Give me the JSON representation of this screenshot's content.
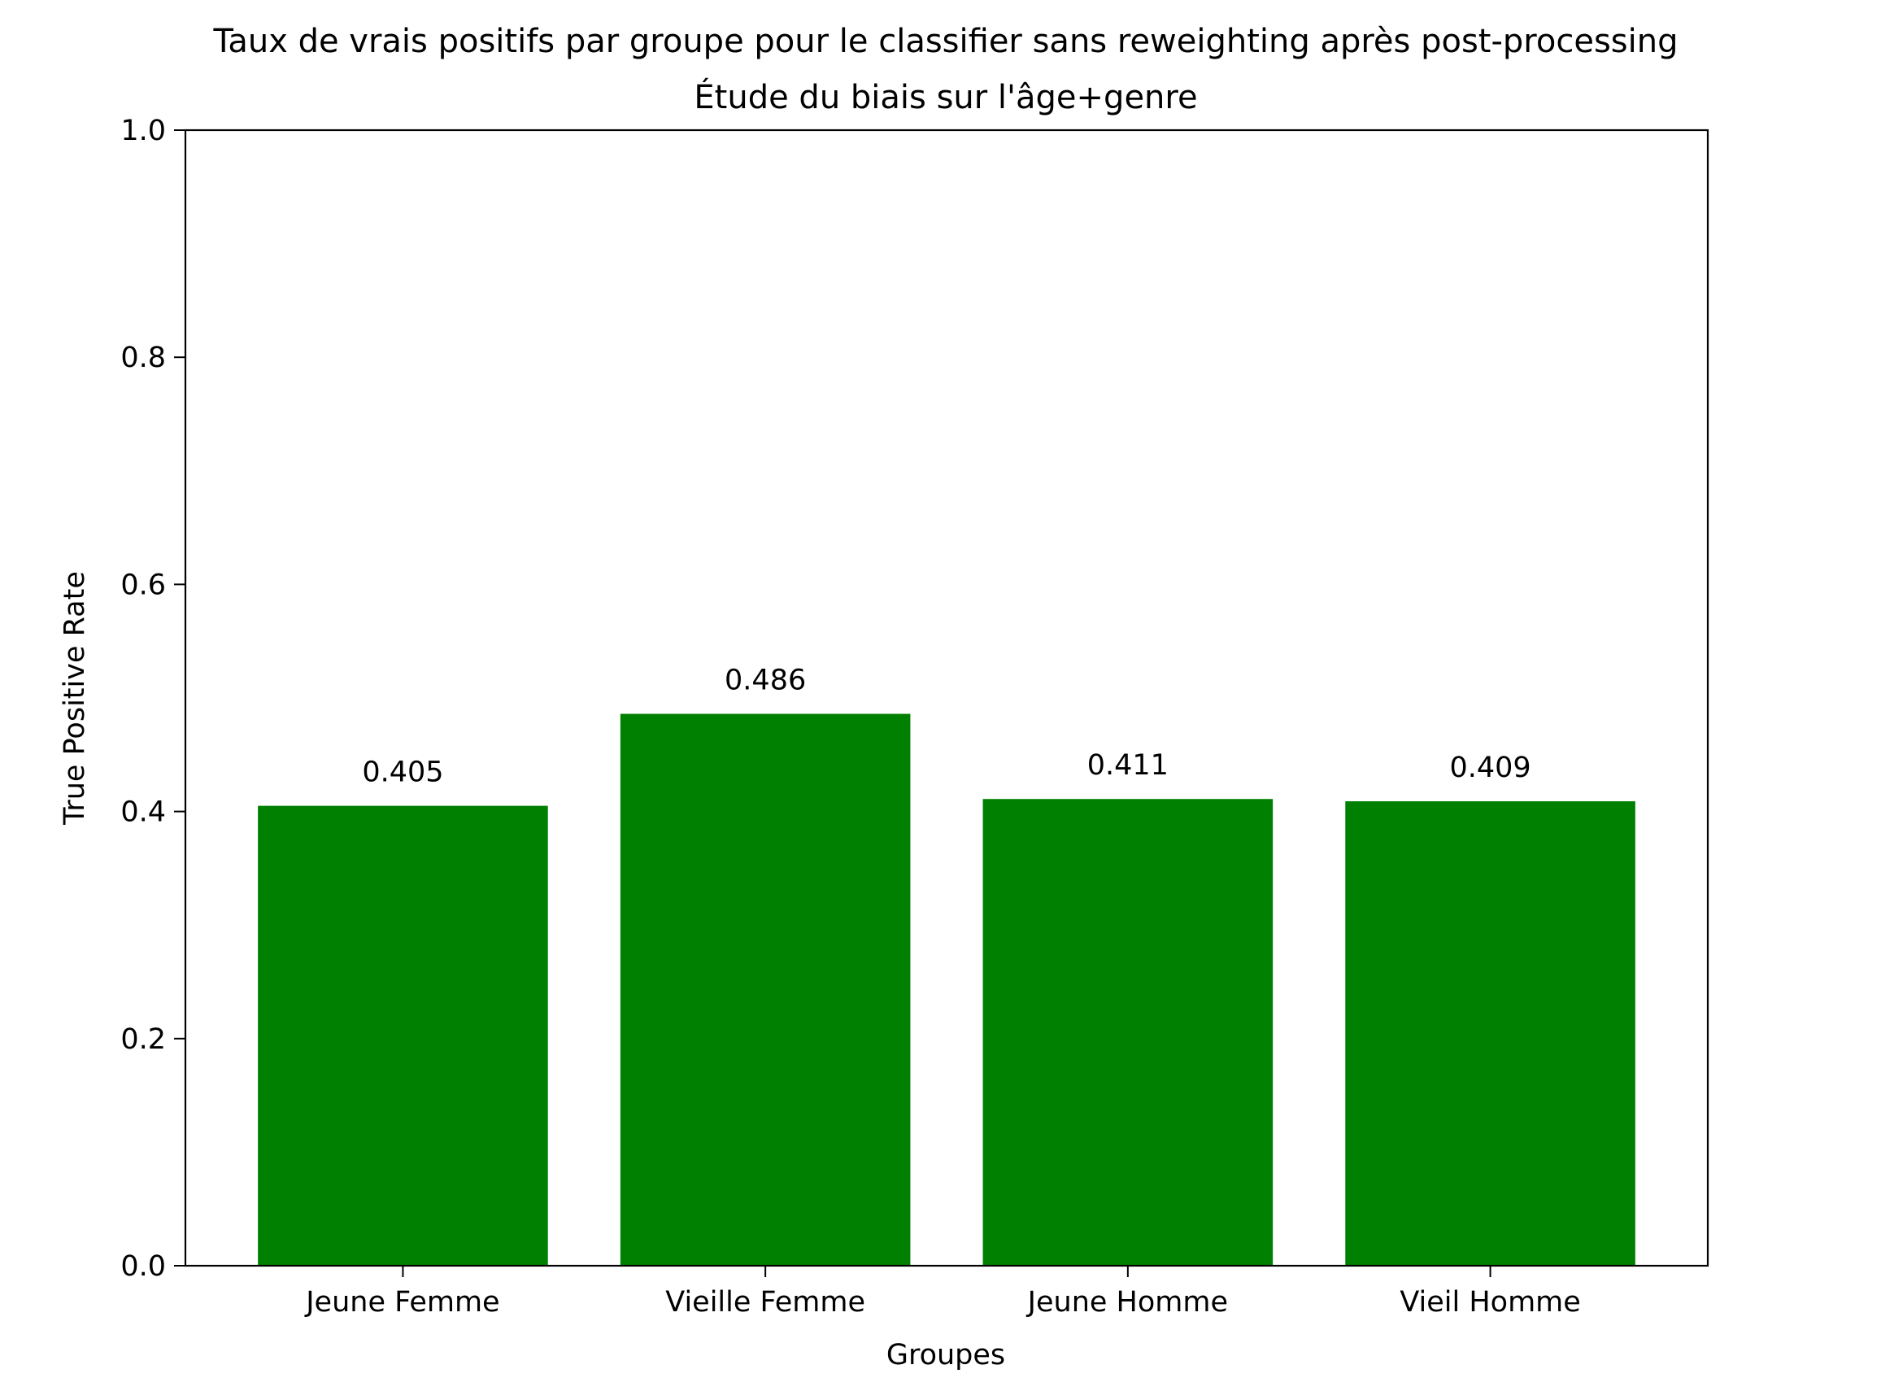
{
  "chart_data": {
    "type": "bar",
    "title": "Taux de vrais positifs par groupe pour le classifier sans reweighting après post-processing",
    "subtitle": "Étude du biais sur l'âge+genre",
    "xlabel": "Groupes",
    "ylabel": "True Positive Rate",
    "ylim": [
      0,
      1
    ],
    "yticks": [
      "0.0",
      "0.2",
      "0.4",
      "0.6",
      "0.8",
      "1.0"
    ],
    "categories": [
      "Jeune Femme",
      "Vieille Femme",
      "Jeune Homme",
      "Vieil Homme"
    ],
    "values": [
      0.405,
      0.486,
      0.411,
      0.409
    ],
    "value_labels": [
      "0.405",
      "0.486",
      "0.411",
      "0.409"
    ],
    "bar_color": "#008000",
    "grid": false
  }
}
